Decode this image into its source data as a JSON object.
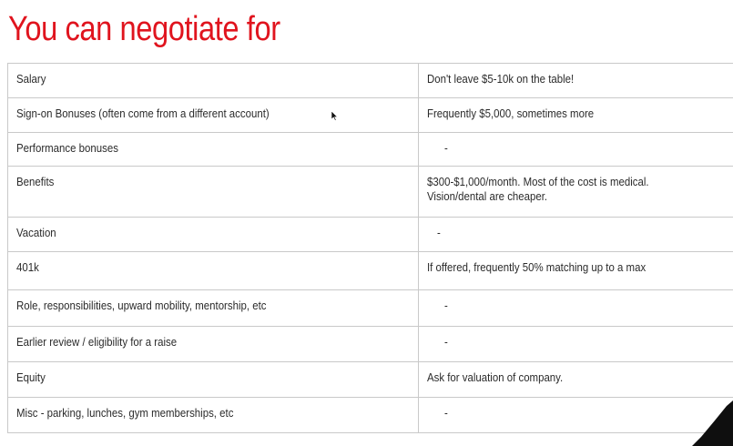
{
  "title": "You can negotiate for",
  "rows": [
    {
      "item": "Salary",
      "note": "Don't leave $5-10k on the table!"
    },
    {
      "item": "Sign-on Bonuses (often come from a different account)",
      "note": "Frequently $5,000, sometimes more"
    },
    {
      "item": "Performance bonuses",
      "note": "-"
    },
    {
      "item": "Benefits",
      "note": "$300-$1,000/month.  Most of the cost is medical.",
      "note2": "Vision/dental are cheaper."
    },
    {
      "item": "Vacation",
      "note": "-"
    },
    {
      "item": "401k",
      "note": "If offered, frequently 50% matching up to a max"
    },
    {
      "item": "Role, responsibilities, upward mobility, mentorship, etc",
      "note": "-"
    },
    {
      "item": "Earlier review / eligibility for a raise",
      "note": "-"
    },
    {
      "item": "Equity",
      "note": "Ask for valuation of company."
    },
    {
      "item": "Misc - parking, lunches, gym memberships, etc",
      "note": "-"
    }
  ],
  "colors": {
    "title": "#e0141e",
    "border": "#c9c9c9",
    "text": "#2b2b2b"
  }
}
